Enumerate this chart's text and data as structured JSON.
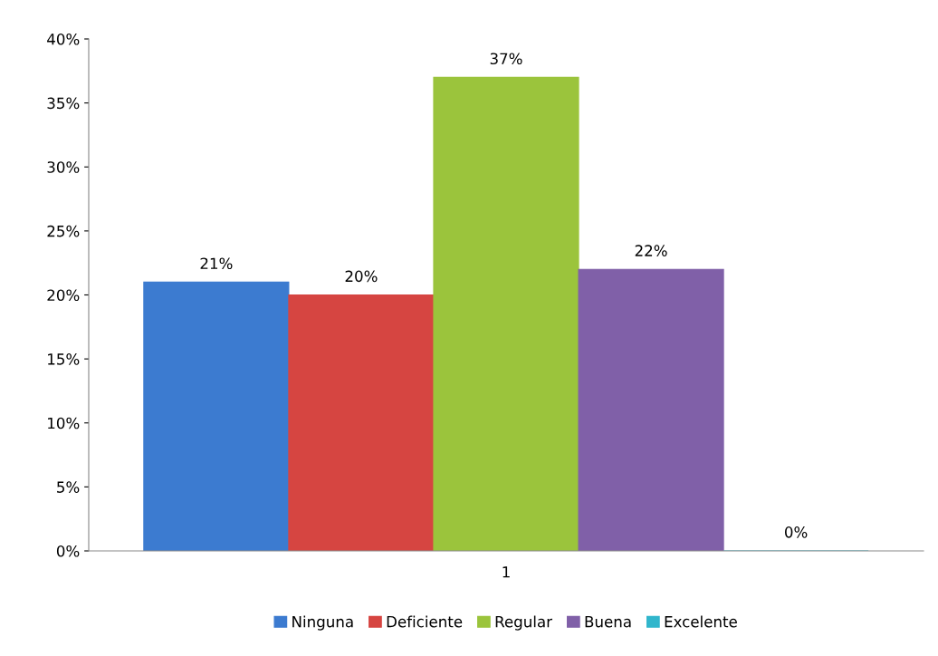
{
  "chart_data": {
    "type": "bar",
    "categories": [
      "1"
    ],
    "series": [
      {
        "name": "Ninguna",
        "color": "#3c7bd0",
        "values": [
          21
        ],
        "value_labels": [
          "21%"
        ]
      },
      {
        "name": "Deficiente",
        "color": "#d64541",
        "values": [
          20
        ],
        "value_labels": [
          "20%"
        ]
      },
      {
        "name": "Regular",
        "color": "#9bc43c",
        "values": [
          37
        ],
        "value_labels": [
          "37%"
        ]
      },
      {
        "name": "Buena",
        "color": "#8060a8",
        "values": [
          22
        ],
        "value_labels": [
          "22%"
        ]
      },
      {
        "name": "Excelente",
        "color": "#31b6cc",
        "values": [
          0
        ],
        "value_labels": [
          "0%"
        ]
      }
    ],
    "ylim": [
      0,
      40
    ],
    "yticks": [
      {
        "value": 0,
        "label": "0%"
      },
      {
        "value": 5,
        "label": "5%"
      },
      {
        "value": 10,
        "label": "10%"
      },
      {
        "value": 15,
        "label": "15%"
      },
      {
        "value": 20,
        "label": "20%"
      },
      {
        "value": 25,
        "label": "25%"
      },
      {
        "value": 30,
        "label": "30%"
      },
      {
        "value": 35,
        "label": "35%"
      },
      {
        "value": 40,
        "label": "40%"
      }
    ],
    "grid": false,
    "legend": "bottom"
  }
}
